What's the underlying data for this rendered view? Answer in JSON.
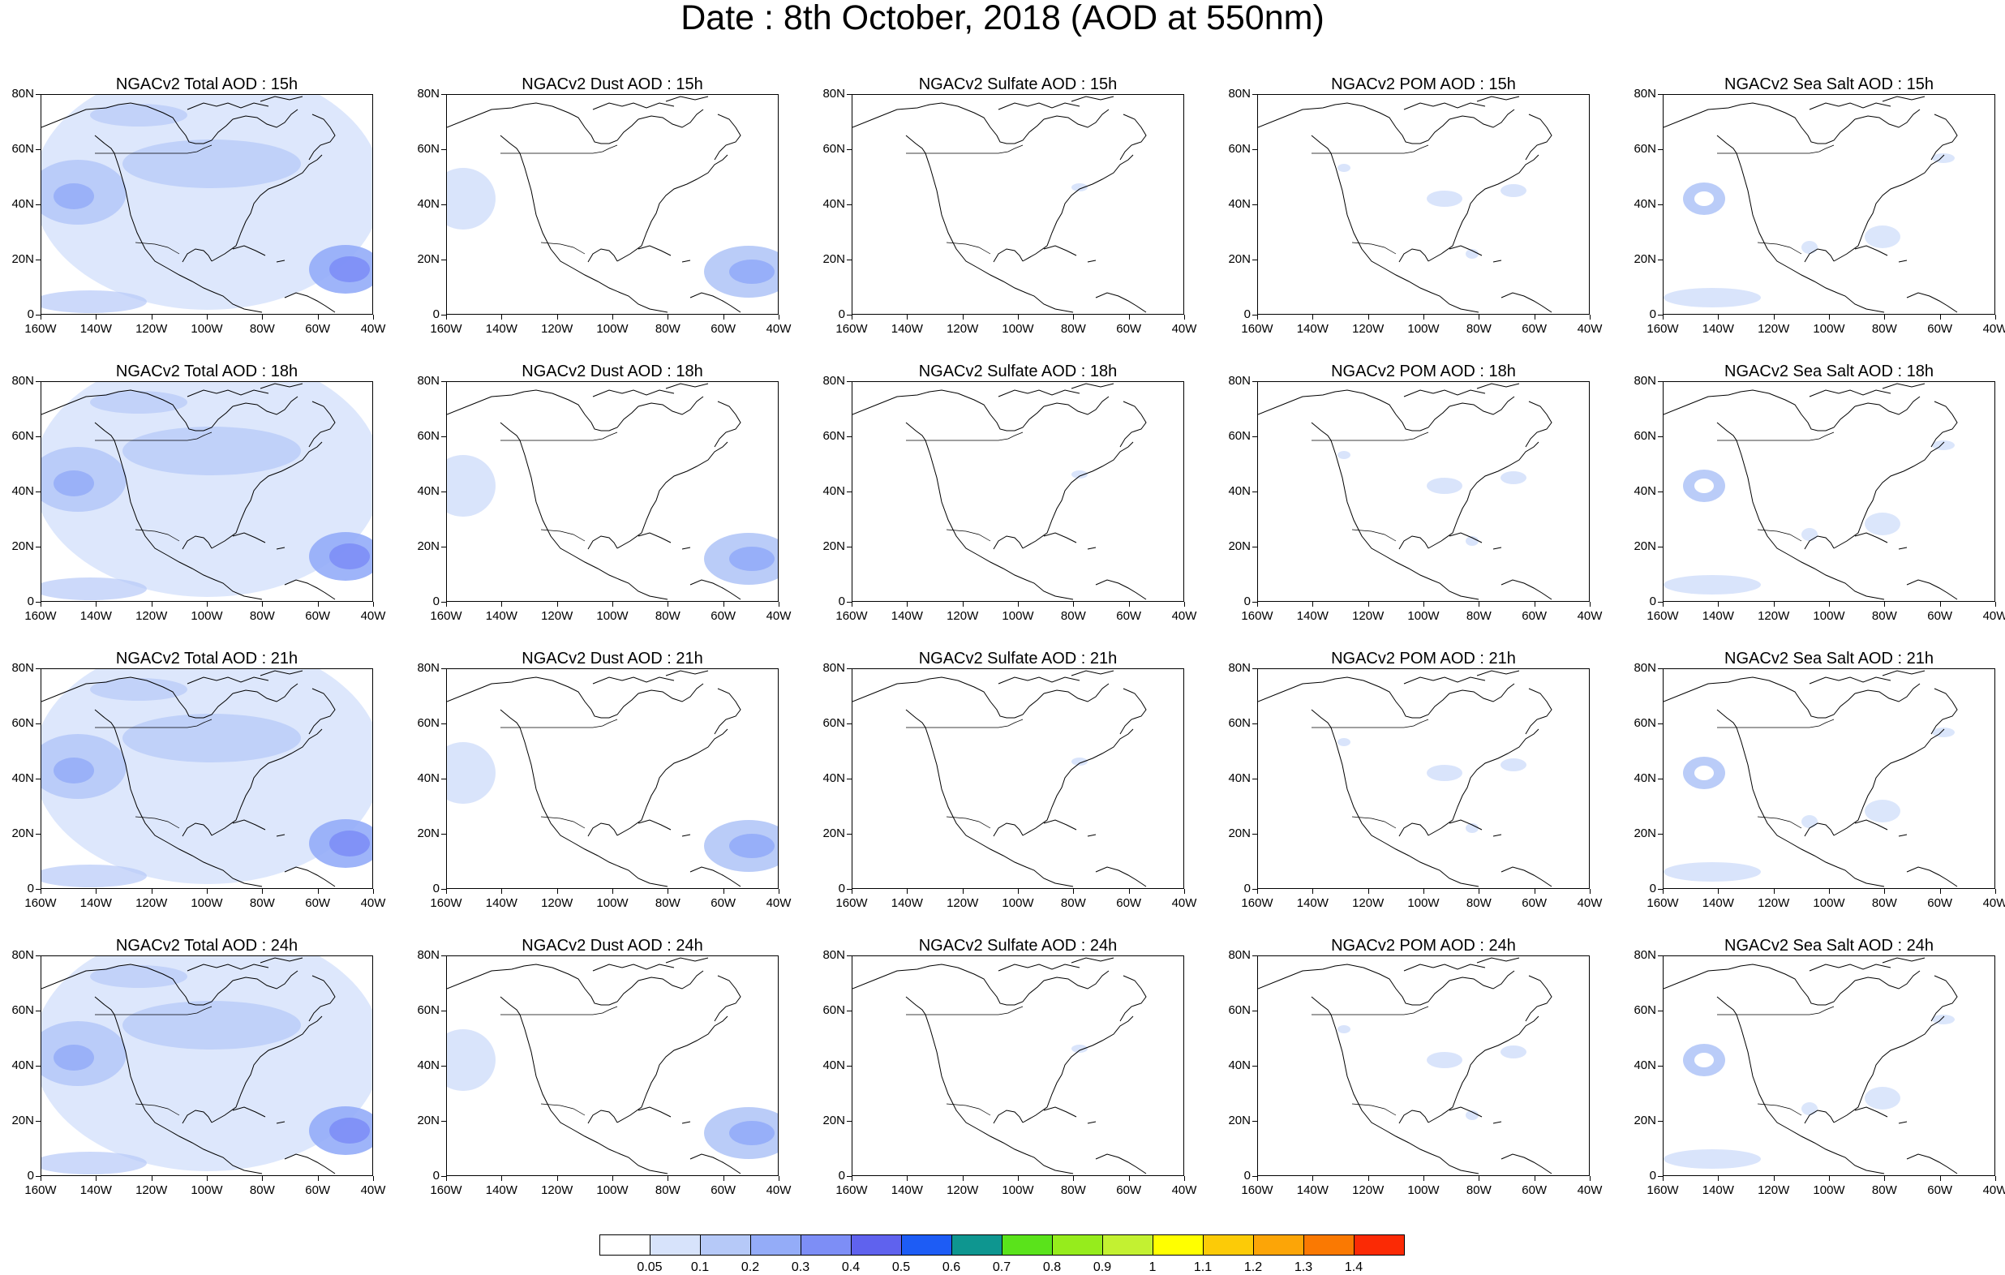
{
  "title": "Date : 8th October, 2018 (AOD at 550nm)",
  "y_tick_labels": [
    "80N",
    "60N",
    "40N",
    "20N",
    "0"
  ],
  "x_tick_labels": [
    "160W",
    "140W",
    "120W",
    "100W",
    "80W",
    "60W",
    "40W"
  ],
  "panels": [
    {
      "title": "NGACv2 Total AOD : 15h",
      "species": "total"
    },
    {
      "title": "NGACv2 Dust AOD : 15h",
      "species": "dust"
    },
    {
      "title": "NGACv2 Sulfate AOD : 15h",
      "species": "sulfate"
    },
    {
      "title": "NGACv2 POM AOD : 15h",
      "species": "pom"
    },
    {
      "title": "NGACv2 Sea Salt AOD : 15h",
      "species": "seasalt"
    },
    {
      "title": "NGACv2 Total AOD : 18h",
      "species": "total"
    },
    {
      "title": "NGACv2 Dust AOD : 18h",
      "species": "dust"
    },
    {
      "title": "NGACv2 Sulfate AOD : 18h",
      "species": "sulfate"
    },
    {
      "title": "NGACv2 POM AOD : 18h",
      "species": "pom"
    },
    {
      "title": "NGACv2 Sea Salt AOD : 18h",
      "species": "seasalt"
    },
    {
      "title": "NGACv2 Total AOD : 21h",
      "species": "total"
    },
    {
      "title": "NGACv2 Dust AOD : 21h",
      "species": "dust"
    },
    {
      "title": "NGACv2 Sulfate AOD : 21h",
      "species": "sulfate"
    },
    {
      "title": "NGACv2 POM AOD : 21h",
      "species": "pom"
    },
    {
      "title": "NGACv2 Sea Salt AOD : 21h",
      "species": "seasalt"
    },
    {
      "title": "NGACv2 Total AOD : 24h",
      "species": "total"
    },
    {
      "title": "NGACv2 Dust AOD : 24h",
      "species": "dust"
    },
    {
      "title": "NGACv2 Sulfate AOD : 24h",
      "species": "sulfate"
    },
    {
      "title": "NGACv2 POM AOD : 24h",
      "species": "pom"
    },
    {
      "title": "NGACv2 Sea Salt  AOD : 24h",
      "species": "seasalt"
    }
  ],
  "colorbar": {
    "colors": [
      "#ffffff",
      "#d7e3fb",
      "#b6c9f8",
      "#94acf8",
      "#7d8ef6",
      "#5f62ee",
      "#1d5cf5",
      "#0e9690",
      "#5ae31b",
      "#96ec1c",
      "#c3f131",
      "#ffff00",
      "#fccb07",
      "#fca507",
      "#fa7902",
      "#fb2a05"
    ],
    "labels": [
      "0.05",
      "0.1",
      "0.2",
      "0.3",
      "0.4",
      "0.5",
      "0.6",
      "0.7",
      "0.8",
      "0.9",
      "1",
      "1.1",
      "1.2",
      "1.3",
      "1.4"
    ]
  }
}
